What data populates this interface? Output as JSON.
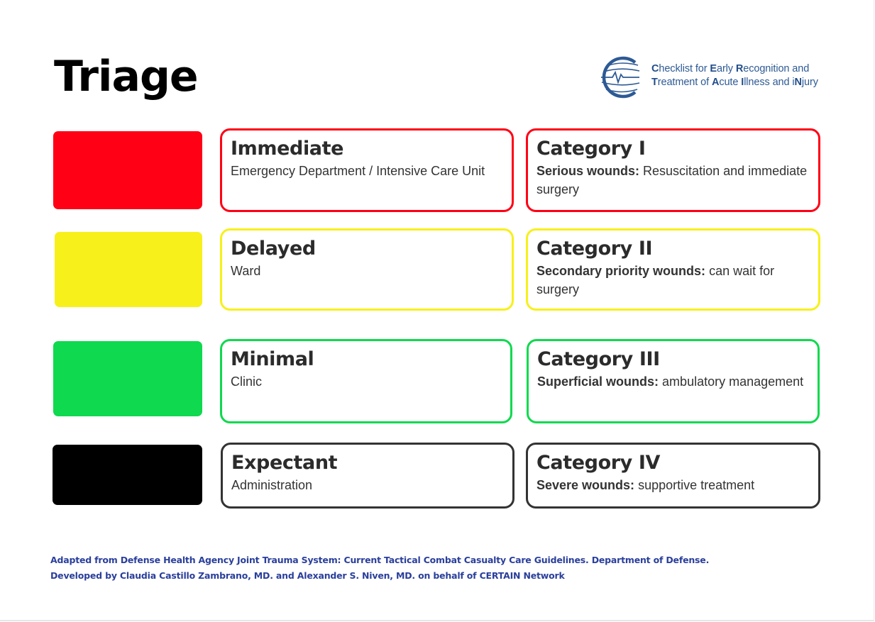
{
  "title": "Triage",
  "logo": {
    "icon": "certain-globe-icon",
    "line1": [
      {
        "bold": "C",
        "rest": "hecklist for "
      },
      {
        "bold": "E",
        "rest": "arly "
      },
      {
        "bold": "R",
        "rest": "ecognition and"
      }
    ],
    "line2": [
      {
        "bold": "T",
        "rest": "reatment of "
      },
      {
        "bold": "A",
        "rest": "cute "
      },
      {
        "bold": "I",
        "rest": "llness and i"
      },
      {
        "bold": "N",
        "rest": "jury"
      }
    ]
  },
  "rows": [
    {
      "color": "#ff0015",
      "level": {
        "title": "Immediate",
        "desc": "Emergency Department / Intensive Care Unit"
      },
      "category": {
        "title": "Category I",
        "desc_bold": "Serious wounds:",
        "desc": "Resuscitation and immediate surgery"
      }
    },
    {
      "color": "#f7f01b",
      "level": {
        "title": "Delayed",
        "desc": "Ward"
      },
      "category": {
        "title": "Category II",
        "desc_bold": "Secondary priority wounds:",
        "desc": "can wait for surgery"
      }
    },
    {
      "color": "#0fd94e",
      "level": {
        "title": "Minimal",
        "desc": "Clinic"
      },
      "category": {
        "title": "Category III",
        "desc_bold": "Superficial wounds:",
        "desc": "ambulatory management"
      }
    },
    {
      "color": "#000000",
      "border_color": "#333333",
      "level": {
        "title": "Expectant",
        "desc": "Administration"
      },
      "category": {
        "title": "Category IV",
        "desc_bold": "Severe wounds:",
        "desc": "supportive treatment"
      }
    }
  ],
  "footer": {
    "line1": "Adapted from Defense Health Agency Joint Trauma System: Current Tactical Combat Casualty Care Guidelines. Department of Defense.",
    "line2": "Developed by Claudia Castillo Zambrano, MD. and Alexander S. Niven, MD. on behalf of CERTAIN Network"
  }
}
